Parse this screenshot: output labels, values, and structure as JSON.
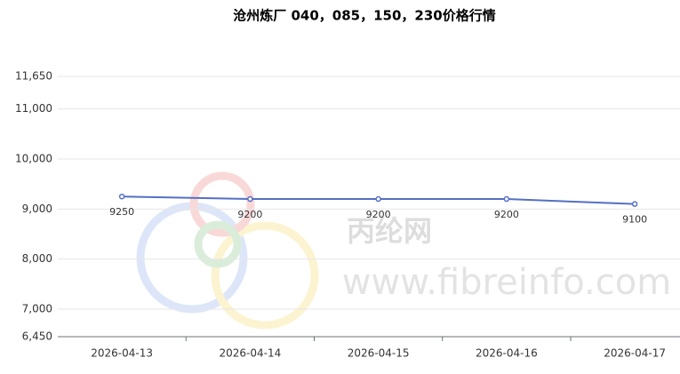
{
  "chart_data": {
    "type": "line",
    "title": "沧州炼厂 040，085，150，230价格行情",
    "categories": [
      "2026-04-13",
      "2026-04-14",
      "2026-04-15",
      "2026-04-16",
      "2026-04-17"
    ],
    "series": [
      {
        "name": "价格",
        "color": "#5470c6",
        "values": [
          9250,
          9200,
          9200,
          9200,
          9100
        ]
      }
    ],
    "ylim": [
      6450,
      11650
    ],
    "yticks": [
      {
        "value": 6450,
        "label": "6,450"
      },
      {
        "value": 7000,
        "label": "7,000"
      },
      {
        "value": 8000,
        "label": "8,000"
      },
      {
        "value": 9000,
        "label": "9,000"
      },
      {
        "value": 10000,
        "label": "10,000"
      },
      {
        "value": 11000,
        "label": "11,000"
      },
      {
        "value": 11650,
        "label": "11,650"
      }
    ],
    "grid": true,
    "watermark": [
      "丙纶网",
      "www.fibreinfo.com"
    ]
  }
}
